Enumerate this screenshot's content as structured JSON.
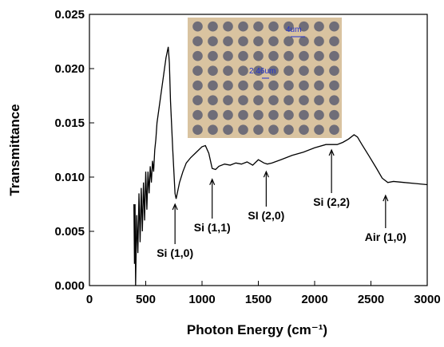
{
  "chart_data": {
    "type": "line",
    "x_label": "Photon Energy (cm⁻¹)",
    "y_label": "Transmittance",
    "xlim": [
      0,
      3000
    ],
    "xticks": [
      0,
      500,
      1000,
      1500,
      2000,
      2500,
      3000
    ],
    "ylim": [
      0,
      0.025
    ],
    "yticks": [
      {
        "value": 0,
        "label": "0.000"
      },
      0.005,
      {
        "value": 0.01,
        "label": "0.010"
      },
      0.015,
      {
        "value": 0.02,
        "label": "0.020"
      },
      0.025
    ],
    "series": [
      {
        "color": "#000000",
        "x": [
          395,
          400,
          405,
          410,
          420,
          430,
          440,
          450,
          460,
          470,
          480,
          490,
          500,
          510,
          520,
          530,
          540,
          550,
          560,
          570,
          580,
          590,
          600,
          620,
          640,
          660,
          680,
          690,
          700,
          710,
          720,
          740,
          760,
          770,
          780,
          800,
          830,
          860,
          900,
          950,
          1000,
          1030,
          1060,
          1090,
          1120,
          1150,
          1200,
          1250,
          1300,
          1350,
          1400,
          1450,
          1500,
          1550,
          1580,
          1620,
          1700,
          1800,
          1900,
          2000,
          2100,
          2200,
          2250,
          2300,
          2350,
          2380,
          2420,
          2480,
          2550,
          2600,
          2650,
          2700,
          2800,
          2900,
          3000
        ],
        "values": [
          0.0075,
          0.002,
          0.0075,
          0.0,
          0.0065,
          0.003,
          0.0085,
          0.004,
          0.009,
          0.005,
          0.0095,
          0.006,
          0.0105,
          0.007,
          0.0105,
          0.0085,
          0.011,
          0.0095,
          0.0115,
          0.0105,
          0.0125,
          0.0135,
          0.015,
          0.0165,
          0.018,
          0.0195,
          0.021,
          0.0215,
          0.022,
          0.0205,
          0.017,
          0.0125,
          0.0085,
          0.008,
          0.0085,
          0.0095,
          0.0105,
          0.0113,
          0.0118,
          0.0123,
          0.0128,
          0.0129,
          0.0122,
          0.0108,
          0.0107,
          0.011,
          0.0112,
          0.0111,
          0.0113,
          0.0112,
          0.0114,
          0.0111,
          0.0116,
          0.0113,
          0.0112,
          0.0113,
          0.0116,
          0.012,
          0.0123,
          0.0127,
          0.013,
          0.013,
          0.0132,
          0.0135,
          0.0139,
          0.0137,
          0.013,
          0.012,
          0.0108,
          0.0099,
          0.0095,
          0.0096,
          0.0095,
          0.0094,
          0.0093
        ]
      }
    ],
    "annotations": [
      {
        "text": "Si (1,0)",
        "x": 760,
        "y": 0.0075
      },
      {
        "text": "Si (1,1)",
        "x": 1090,
        "y": 0.0098
      },
      {
        "text": "SI (2,0)",
        "x": 1570,
        "y": 0.0105
      },
      {
        "text": "Si (2,2)",
        "x": 2150,
        "y": 0.0125
      },
      {
        "text": "Air (1,0)",
        "x": 2630,
        "y": 0.0083
      }
    ],
    "inset": {
      "labels": [
        "4um",
        "2.46um"
      ]
    }
  }
}
